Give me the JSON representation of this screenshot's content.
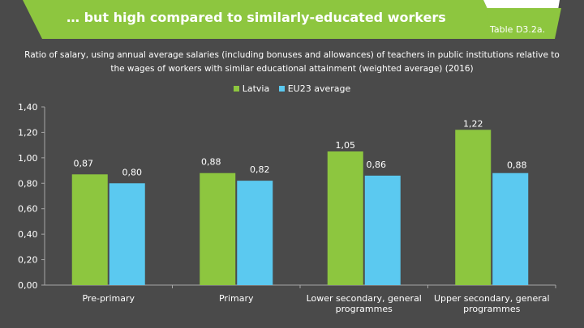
{
  "header": {
    "title": "… but high compared to similarly-educated workers",
    "tag": "Table D3.2a."
  },
  "colors": {
    "background": "#4a4a4a",
    "banner": "#8dc63f",
    "latvia": "#8dc63f",
    "eu23": "#5bc9f0",
    "axis": "#a6a6a6"
  },
  "chart_data": {
    "type": "bar",
    "title": "Ratio of salary, using annual average salaries (including bonuses and allowances) of teachers  in public institutions relative to the wages of workers with similar educational attainment (weighted average) (2016)",
    "categories": [
      "Pre-primary",
      "Primary",
      "Lower secondary, general programmes",
      "Upper secondary, general programmes"
    ],
    "category_lines": [
      [
        "Pre-primary"
      ],
      [
        "Primary"
      ],
      [
        "Lower secondary, general",
        "programmes"
      ],
      [
        "Upper secondary, general",
        "programmes"
      ]
    ],
    "series": [
      {
        "name": "Latvia",
        "values": [
          0.87,
          0.88,
          1.05,
          1.22
        ],
        "labels": [
          "0,87",
          "0,88",
          "1,05",
          "1,22"
        ]
      },
      {
        "name": "EU23 average",
        "values": [
          0.8,
          0.82,
          0.86,
          0.88
        ],
        "labels": [
          "0,80",
          "0,82",
          "0,86",
          "0,88"
        ]
      }
    ],
    "yticks": [
      0,
      0.2,
      0.4,
      0.6,
      0.8,
      1.0,
      1.2,
      1.4
    ],
    "ytick_labels": [
      "0,00",
      "0,20",
      "0,40",
      "0,60",
      "0,80",
      "1,00",
      "1,20",
      "1,40"
    ],
    "ylim": [
      0,
      1.4
    ],
    "grid": false,
    "legend": "top"
  }
}
